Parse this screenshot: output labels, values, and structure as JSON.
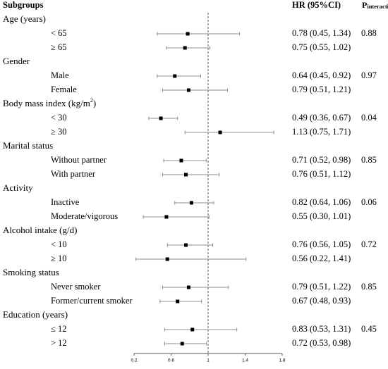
{
  "chart_data": {
    "type": "forest",
    "headers": {
      "subgroups": "Subgroups",
      "hr": "HR (95%CI)",
      "p_interaction_prefix": "P",
      "p_interaction_suffix": "interaction"
    },
    "x_axis": {
      "ticks": [
        "0.2",
        "0.6",
        "1",
        "1.4",
        "1.8"
      ],
      "tick_values": [
        0.2,
        0.6,
        1.0,
        1.4,
        1.8
      ],
      "xlim": [
        0.2,
        1.8
      ],
      "reference_line": 1.0,
      "reference_line_style": "dashed"
    },
    "groups": [
      {
        "label": "Age (years)",
        "p_interaction": "0.88",
        "rows": [
          {
            "label": "< 65",
            "hr": 0.78,
            "lower": 0.45,
            "upper": 1.34,
            "text": "0.78 (0.45, 1.34)"
          },
          {
            "label": "≥ 65",
            "hr": 0.75,
            "lower": 0.55,
            "upper": 1.02,
            "text": "0.75 (0.55, 1.02)"
          }
        ]
      },
      {
        "label": "Gender",
        "p_interaction": "0.97",
        "rows": [
          {
            "label": "Male",
            "hr": 0.64,
            "lower": 0.45,
            "upper": 0.92,
            "text": "0.64 (0.45, 0.92)"
          },
          {
            "label": "Female",
            "hr": 0.79,
            "lower": 0.51,
            "upper": 1.21,
            "text": "0.79 (0.51, 1.21)"
          }
        ]
      },
      {
        "label": "Body mass index (kg/m",
        "label_sup": "2",
        "label_tail": ")",
        "p_interaction": "0.04",
        "rows": [
          {
            "label": "< 30",
            "hr": 0.49,
            "lower": 0.36,
            "upper": 0.67,
            "text": "0.49 (0.36, 0.67)"
          },
          {
            "label": "≥ 30",
            "hr": 1.13,
            "lower": 0.75,
            "upper": 1.71,
            "text": "1.13 (0.75, 1.71)"
          }
        ]
      },
      {
        "label": "Marital status",
        "p_interaction": "0.85",
        "rows": [
          {
            "label": "Without partner",
            "hr": 0.71,
            "lower": 0.52,
            "upper": 0.98,
            "text": "0.71 (0.52, 0.98)"
          },
          {
            "label": "With partner",
            "hr": 0.76,
            "lower": 0.51,
            "upper": 1.12,
            "text": "0.76 (0.51, 1.12)"
          }
        ]
      },
      {
        "label": "Activity",
        "p_interaction": "0.06",
        "rows": [
          {
            "label": "Inactive",
            "hr": 0.82,
            "lower": 0.64,
            "upper": 1.06,
            "text": "0.82 (0.64, 1.06)"
          },
          {
            "label": "Moderate/vigorous",
            "hr": 0.55,
            "lower": 0.3,
            "upper": 1.01,
            "text": "0.55 (0.30, 1.01)"
          }
        ]
      },
      {
        "label": "Alcohol intake (g/d)",
        "p_interaction": "0.72",
        "rows": [
          {
            "label": "< 10",
            "hr": 0.76,
            "lower": 0.56,
            "upper": 1.05,
            "text": "0.76 (0.56, 1.05)"
          },
          {
            "label": "≥ 10",
            "hr": 0.56,
            "lower": 0.22,
            "upper": 1.41,
            "text": "0.56 (0.22, 1.41)"
          }
        ]
      },
      {
        "label": "Smoking status",
        "p_interaction": "0.85",
        "rows": [
          {
            "label": "Never smoker",
            "hr": 0.79,
            "lower": 0.51,
            "upper": 1.22,
            "text": "0.79 (0.51, 1.22)"
          },
          {
            "label": "Former/current smoker",
            "hr": 0.67,
            "lower": 0.48,
            "upper": 0.93,
            "text": "0.67 (0.48, 0.93)"
          }
        ]
      },
      {
        "label": "Education (years)",
        "p_interaction": "0.45",
        "rows": [
          {
            "label": "≤ 12",
            "hr": 0.83,
            "lower": 0.53,
            "upper": 1.31,
            "text": "0.83 (0.53, 1.31)"
          },
          {
            "label": "> 12",
            "hr": 0.72,
            "lower": 0.53,
            "upper": 0.98,
            "text": "0.72 (0.53, 0.98)"
          }
        ]
      }
    ]
  }
}
